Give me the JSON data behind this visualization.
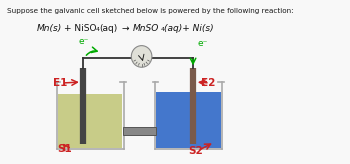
{
  "bg_color": "#f8f8f8",
  "title_text": "Suppose the galvanic cell sketched below is powered by the following reaction:",
  "label_E1": "E1",
  "label_E2": "E2",
  "label_S1": "S1",
  "label_S2": "S2",
  "label_e1": "e⁻",
  "label_e2": "e⁻",
  "beaker1_liquid": "#c8cc88",
  "beaker2_liquid": "#4477cc",
  "beaker_fill": "#e8eae0",
  "electrode1_color": "#444444",
  "electrode2_color": "#7a5a4a",
  "wire_color": "#333333",
  "arrow_color": "#cc2222",
  "electron_arrow_color": "#00aa00",
  "voltmeter_face": "#e0e0d8",
  "voltmeter_edge": "#888888",
  "salt_bridge_color": "#555555",
  "salt_bridge_fill": "#888888"
}
